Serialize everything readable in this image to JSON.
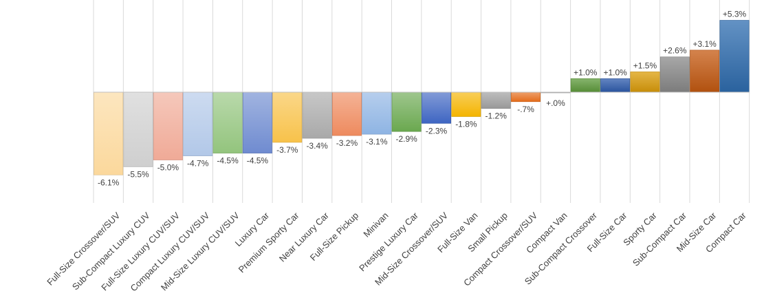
{
  "chart_data": {
    "type": "bar",
    "title": "",
    "xlabel": "",
    "ylabel": "",
    "ylim": [
      -8,
      5.6
    ],
    "grid": "vertical",
    "legend": "none",
    "categories": [
      "Full-Size Crossover/SUV",
      "Sub-Compact Luxury CUV",
      "Full-Size Luxury CUV/SUV",
      "Compact Luxury CUV/SUV",
      "Mid-Size Luxury CUV/SUV",
      "Luxury Car",
      "Premium Sporty Car",
      "Near Luxury Car",
      "Full-Size Pickup",
      "Minivan",
      "Prestige Luxury Car",
      "Mid-Size Crossover/SUV",
      "Full-Size Van",
      "Small Pickup",
      "Compact Crossover/SUV",
      "Compact Van",
      "Sub-Compact Crossover",
      "Full-Size Car",
      "Sporty Car",
      "Sub-Compact Car",
      "Mid-Size Car",
      "Compact Car"
    ],
    "values": [
      -6.1,
      -5.5,
      -5.0,
      -4.7,
      -4.5,
      -4.5,
      -3.7,
      -3.4,
      -3.2,
      -3.1,
      -2.9,
      -2.3,
      -1.8,
      -1.2,
      -0.7,
      0.0,
      1.0,
      1.0,
      1.5,
      2.6,
      3.1,
      5.3
    ],
    "value_labels": [
      "-6.1%",
      "-5.5%",
      "-5.0%",
      "-4.7%",
      "-4.5%",
      "-4.5%",
      "-3.7%",
      "-3.4%",
      "-3.2%",
      "-3.1%",
      "-2.9%",
      "-2.3%",
      "-1.8%",
      "-1.2%",
      "-.7%",
      "+.0%",
      "+1.0%",
      "+1.0%",
      "+1.5%",
      "+2.6%",
      "+3.1%",
      "+5.3%"
    ],
    "colors": [
      "#fbd89c",
      "#cfcfcf",
      "#f0aa97",
      "#b2c8e8",
      "#93c47d",
      "#6f8bd0",
      "#f8c24a",
      "#a9a9a9",
      "#ee8a5e",
      "#8eb4e3",
      "#6aa84f",
      "#3e65c2",
      "#f4b400",
      "#999999",
      "#e46c1b",
      "#b0b0b0",
      "#5e9b3c",
      "#2f5cae",
      "#dc9d0a",
      "#8a8a8a",
      "#c55a11",
      "#2f6db0"
    ]
  }
}
